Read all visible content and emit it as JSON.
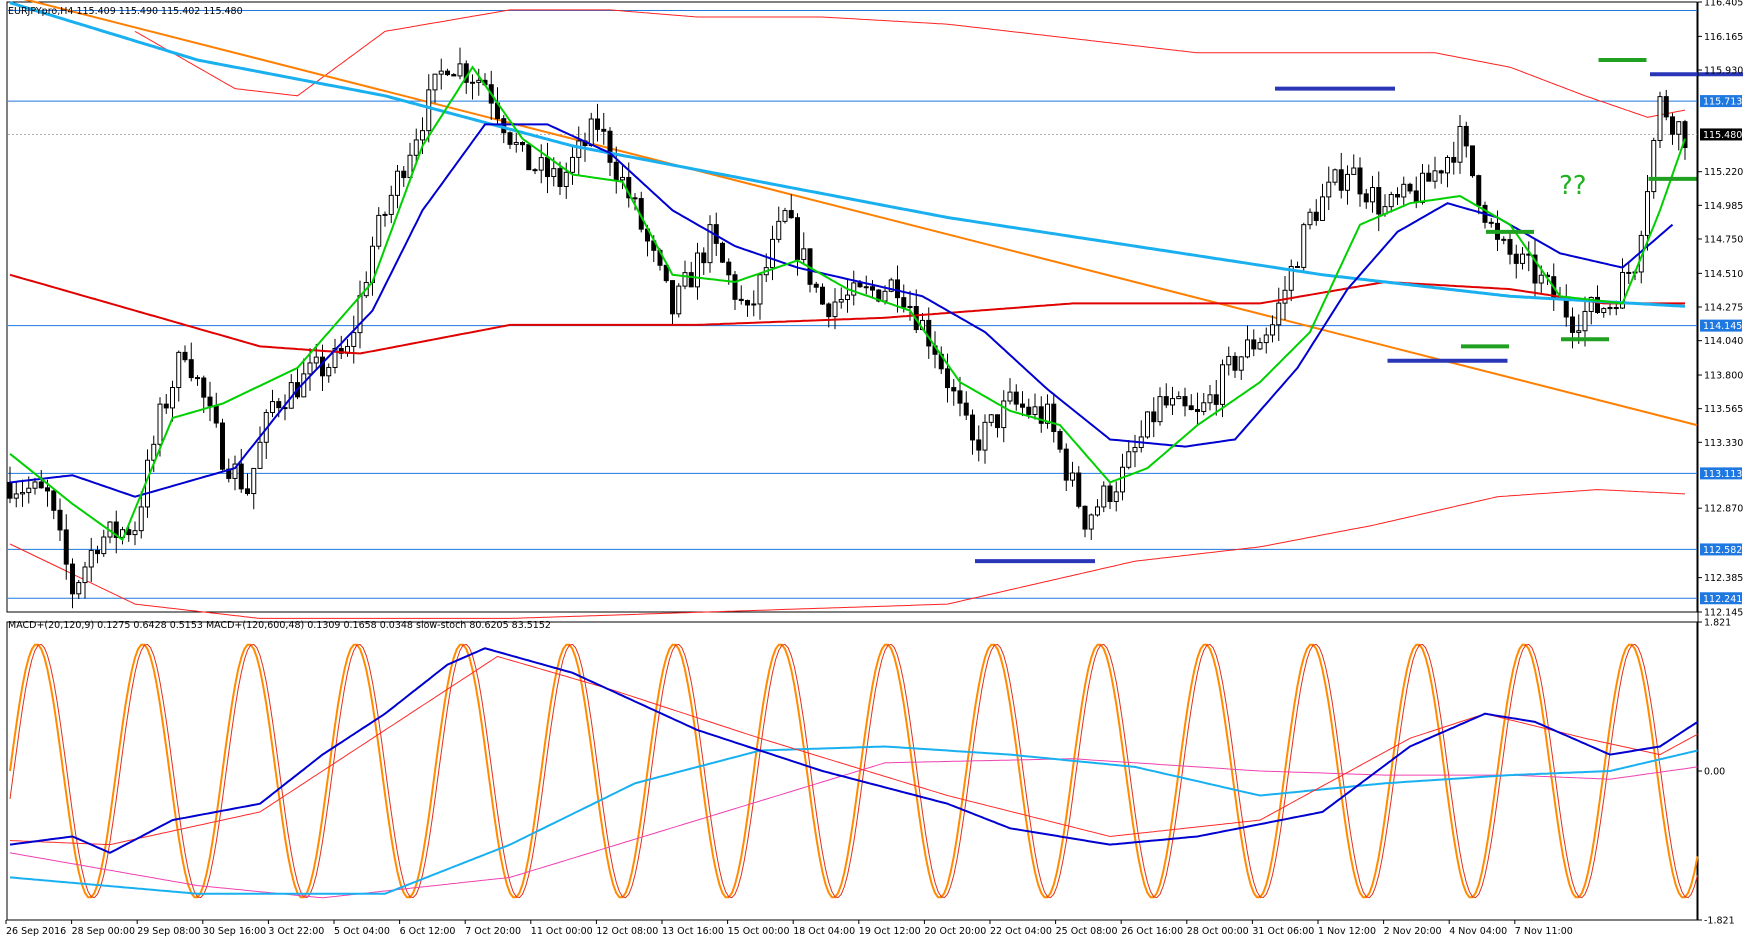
{
  "header": {
    "price_title": "EURJPYpro,H4  115.409 115.490 115.402 115.480",
    "indicator_title": "MACD+(20,120,9) 0.1275 0.6428 0.5153   MACD+(120,600,48) 0.1309 0.1658 0.0348   slow-stoch 80.6205 83.5152"
  },
  "annotation": "??",
  "colors": {
    "candle": "#000000",
    "ema_fast": "#00d000",
    "ema_mid": "#0000d0",
    "ema_slow": "#e00000",
    "ema_trend": "#1ab0f0",
    "trendline": "#ff7f00",
    "bands": "#ff2020",
    "hline": "#1e78e0",
    "levels_blue": "#2a36b8",
    "levels_green": "#20a020",
    "stoch": "#ff8c00",
    "stoch2": "#e0301a",
    "macd1": "#0000d0",
    "macd1_sig": "#ff2a2a",
    "macd2": "#18b0f0",
    "macd2_sig": "#f040b0"
  },
  "chart_data": [
    {
      "type": "candlestick",
      "symbol": "EURJPYpro",
      "timeframe": "H4",
      "ylim": [
        112.145,
        116.405
      ],
      "y_ticks": [
        "116.405",
        "116.165",
        "115.930",
        "115.713",
        "115.480",
        "115.220",
        "114.985",
        "114.750",
        "114.510",
        "114.275",
        "114.145",
        "114.040",
        "113.800",
        "113.565",
        "113.330",
        "113.113",
        "112.870",
        "112.582",
        "112.385",
        "112.241",
        "112.145"
      ],
      "highlighted_levels": [
        "116.346",
        "115.713",
        "115.480",
        "114.145",
        "113.113",
        "112.582",
        "112.241"
      ],
      "horizontal_lines": [
        116.346,
        115.713,
        114.145,
        113.113,
        112.582,
        112.241
      ],
      "current_price_line": 115.48,
      "x_labels": [
        "26 Sep 2016",
        "28 Sep 00:00",
        "29 Sep 08:00",
        "30 Sep 16:00",
        "3 Oct 22:00",
        "5 Oct 04:00",
        "6 Oct 12:00",
        "7 Oct 20:00",
        "11 Oct 00:00",
        "12 Oct 08:00",
        "13 Oct 16:00",
        "15 Oct 00:00",
        "18 Oct 04:00",
        "19 Oct 12:00",
        "20 Oct 20:00",
        "22 Oct 04:00",
        "25 Oct 08:00",
        "26 Oct 16:00",
        "28 Oct 00:00",
        "31 Oct 06:00",
        "1 Nov 12:00",
        "2 Nov 20:00",
        "4 Nov 04:00",
        "7 Nov 11:00"
      ],
      "path_anchors": [
        [
          0,
          113.05
        ],
        [
          6,
          112.95
        ],
        [
          10,
          112.3
        ],
        [
          14,
          112.65
        ],
        [
          20,
          112.75
        ],
        [
          24,
          113.5
        ],
        [
          28,
          114.0
        ],
        [
          34,
          113.25
        ],
        [
          38,
          113.0
        ],
        [
          42,
          113.6
        ],
        [
          48,
          113.8
        ],
        [
          54,
          113.95
        ],
        [
          58,
          114.7
        ],
        [
          64,
          115.4
        ],
        [
          70,
          116.0
        ],
        [
          76,
          115.85
        ],
        [
          82,
          115.3
        ],
        [
          88,
          115.15
        ],
        [
          94,
          115.55
        ],
        [
          100,
          114.95
        ],
        [
          106,
          114.25
        ],
        [
          112,
          114.75
        ],
        [
          118,
          114.2
        ],
        [
          124,
          114.9
        ],
        [
          130,
          114.3
        ],
        [
          136,
          114.35
        ],
        [
          142,
          114.45
        ],
        [
          148,
          114.0
        ],
        [
          154,
          113.3
        ],
        [
          160,
          113.6
        ],
        [
          166,
          113.5
        ],
        [
          172,
          112.8
        ],
        [
          178,
          113.1
        ],
        [
          184,
          113.6
        ],
        [
          190,
          113.5
        ],
        [
          196,
          113.9
        ],
        [
          202,
          114.15
        ],
        [
          208,
          114.9
        ],
        [
          214,
          115.25
        ],
        [
          220,
          114.95
        ],
        [
          226,
          115.1
        ],
        [
          232,
          115.45
        ],
        [
          238,
          114.7
        ],
        [
          244,
          114.5
        ],
        [
          250,
          114.2
        ],
        [
          256,
          114.3
        ],
        [
          260,
          114.6
        ],
        [
          264,
          115.7
        ],
        [
          268,
          115.48
        ]
      ],
      "candle_count": 269,
      "ema_fast_anchors": [
        [
          0,
          113.25
        ],
        [
          10,
          112.9
        ],
        [
          18,
          112.65
        ],
        [
          26,
          113.5
        ],
        [
          34,
          113.6
        ],
        [
          46,
          113.85
        ],
        [
          58,
          114.45
        ],
        [
          66,
          115.4
        ],
        [
          74,
          115.95
        ],
        [
          82,
          115.45
        ],
        [
          90,
          115.2
        ],
        [
          98,
          115.15
        ],
        [
          106,
          114.5
        ],
        [
          116,
          114.45
        ],
        [
          126,
          114.6
        ],
        [
          134,
          114.4
        ],
        [
          144,
          114.25
        ],
        [
          152,
          113.75
        ],
        [
          160,
          113.55
        ],
        [
          168,
          113.45
        ],
        [
          176,
          113.05
        ],
        [
          182,
          113.15
        ],
        [
          190,
          113.45
        ],
        [
          200,
          113.75
        ],
        [
          208,
          114.1
        ],
        [
          216,
          114.85
        ],
        [
          224,
          115.0
        ],
        [
          232,
          115.05
        ],
        [
          240,
          114.85
        ],
        [
          248,
          114.35
        ],
        [
          258,
          114.3
        ],
        [
          264,
          114.95
        ],
        [
          268,
          115.45
        ]
      ],
      "ema_mid_anchors": [
        [
          0,
          113.05
        ],
        [
          10,
          113.1
        ],
        [
          20,
          112.95
        ],
        [
          28,
          113.05
        ],
        [
          36,
          113.15
        ],
        [
          46,
          113.7
        ],
        [
          58,
          114.25
        ],
        [
          66,
          114.95
        ],
        [
          76,
          115.55
        ],
        [
          86,
          115.55
        ],
        [
          96,
          115.35
        ],
        [
          106,
          114.95
        ],
        [
          116,
          114.7
        ],
        [
          126,
          114.55
        ],
        [
          136,
          114.45
        ],
        [
          146,
          114.35
        ],
        [
          156,
          114.1
        ],
        [
          166,
          113.7
        ],
        [
          176,
          113.35
        ],
        [
          188,
          113.3
        ],
        [
          196,
          113.35
        ],
        [
          206,
          113.85
        ],
        [
          214,
          114.4
        ],
        [
          222,
          114.8
        ],
        [
          230,
          115.0
        ],
        [
          238,
          114.9
        ],
        [
          248,
          114.65
        ],
        [
          258,
          114.55
        ],
        [
          266,
          114.85
        ]
      ],
      "ema_slow_anchors": [
        [
          0,
          114.5
        ],
        [
          20,
          114.25
        ],
        [
          40,
          114.0
        ],
        [
          56,
          113.95
        ],
        [
          80,
          114.15
        ],
        [
          110,
          114.15
        ],
        [
          140,
          114.2
        ],
        [
          170,
          114.3
        ],
        [
          200,
          114.3
        ],
        [
          220,
          114.45
        ],
        [
          240,
          114.4
        ],
        [
          255,
          114.3
        ],
        [
          268,
          114.3
        ]
      ],
      "ema_trend_anchors": [
        [
          0,
          116.4
        ],
        [
          30,
          116.0
        ],
        [
          60,
          115.75
        ],
        [
          90,
          115.4
        ],
        [
          120,
          115.15
        ],
        [
          150,
          114.9
        ],
        [
          180,
          114.7
        ],
        [
          210,
          114.5
        ],
        [
          240,
          114.35
        ],
        [
          268,
          114.28
        ]
      ],
      "trendline": {
        "from": [
          0,
          116.45
        ],
        "to": [
          297,
          113.45
        ]
      },
      "band_upper_anchors": [
        [
          20,
          116.2
        ],
        [
          36,
          115.8
        ],
        [
          46,
          115.75
        ],
        [
          60,
          116.2
        ],
        [
          80,
          116.35
        ],
        [
          96,
          116.35
        ],
        [
          110,
          116.3
        ],
        [
          130,
          116.3
        ],
        [
          150,
          116.25
        ],
        [
          170,
          116.15
        ],
        [
          190,
          116.05
        ],
        [
          210,
          116.05
        ],
        [
          228,
          116.05
        ],
        [
          240,
          115.95
        ],
        [
          252,
          115.75
        ],
        [
          262,
          115.6
        ],
        [
          268,
          115.65
        ]
      ],
      "band_lower_anchors": [
        [
          0,
          112.62
        ],
        [
          20,
          112.2
        ],
        [
          40,
          112.1
        ],
        [
          60,
          112.1
        ],
        [
          80,
          112.1
        ],
        [
          150,
          112.2
        ],
        [
          180,
          112.5
        ],
        [
          200,
          112.6
        ],
        [
          218,
          112.75
        ],
        [
          238,
          112.95
        ],
        [
          254,
          113.0
        ],
        [
          268,
          112.97
        ]
      ],
      "level_marks_blue": [
        [
          212,
          115.8
        ],
        [
          272,
          115.9
        ],
        [
          230,
          113.9
        ],
        [
          164,
          112.5
        ]
      ],
      "level_marks_green": [
        [
          258,
          116.0
        ],
        [
          266,
          115.17
        ],
        [
          240,
          114.8
        ],
        [
          236,
          114.0
        ],
        [
          252,
          114.05
        ]
      ]
    },
    {
      "type": "line",
      "name": "MACD+ & slow-stoch",
      "ylim": [
        -1.821,
        1.821
      ],
      "y_ticks": [
        "1.821",
        "0.00",
        "-1.821"
      ],
      "stoch_period_candles": 17,
      "macd1_anchors": [
        [
          0,
          -0.9
        ],
        [
          10,
          -0.8
        ],
        [
          16,
          -1.0
        ],
        [
          26,
          -0.6
        ],
        [
          40,
          -0.4
        ],
        [
          50,
          0.2
        ],
        [
          60,
          0.7
        ],
        [
          70,
          1.3
        ],
        [
          76,
          1.5
        ],
        [
          90,
          1.2
        ],
        [
          110,
          0.5
        ],
        [
          130,
          0.0
        ],
        [
          150,
          -0.4
        ],
        [
          160,
          -0.7
        ],
        [
          176,
          -0.9
        ],
        [
          190,
          -0.8
        ],
        [
          210,
          -0.5
        ],
        [
          224,
          0.3
        ],
        [
          236,
          0.7
        ],
        [
          244,
          0.6
        ],
        [
          256,
          0.2
        ],
        [
          264,
          0.3
        ],
        [
          270,
          0.6
        ]
      ],
      "macd1_sig_anchors": [
        [
          0,
          -0.85
        ],
        [
          16,
          -0.9
        ],
        [
          40,
          -0.5
        ],
        [
          60,
          0.5
        ],
        [
          78,
          1.4
        ],
        [
          96,
          1.0
        ],
        [
          120,
          0.4
        ],
        [
          150,
          -0.3
        ],
        [
          176,
          -0.8
        ],
        [
          200,
          -0.6
        ],
        [
          224,
          0.4
        ],
        [
          236,
          0.7
        ],
        [
          252,
          0.4
        ],
        [
          264,
          0.2
        ],
        [
          270,
          0.45
        ]
      ],
      "macd2_anchors": [
        [
          0,
          -1.3
        ],
        [
          30,
          -1.5
        ],
        [
          60,
          -1.5
        ],
        [
          80,
          -0.9
        ],
        [
          100,
          -0.15
        ],
        [
          120,
          0.25
        ],
        [
          140,
          0.3
        ],
        [
          160,
          0.2
        ],
        [
          180,
          0.05
        ],
        [
          200,
          -0.3
        ],
        [
          220,
          -0.15
        ],
        [
          240,
          -0.05
        ],
        [
          256,
          0.0
        ],
        [
          270,
          0.25
        ]
      ],
      "macd2_sig_anchors": [
        [
          0,
          -1.0
        ],
        [
          30,
          -1.4
        ],
        [
          50,
          -1.55
        ],
        [
          80,
          -1.3
        ],
        [
          110,
          -0.6
        ],
        [
          140,
          0.1
        ],
        [
          170,
          0.15
        ],
        [
          200,
          0.0
        ],
        [
          220,
          -0.05
        ],
        [
          240,
          -0.05
        ],
        [
          256,
          -0.1
        ],
        [
          270,
          0.05
        ]
      ]
    }
  ]
}
